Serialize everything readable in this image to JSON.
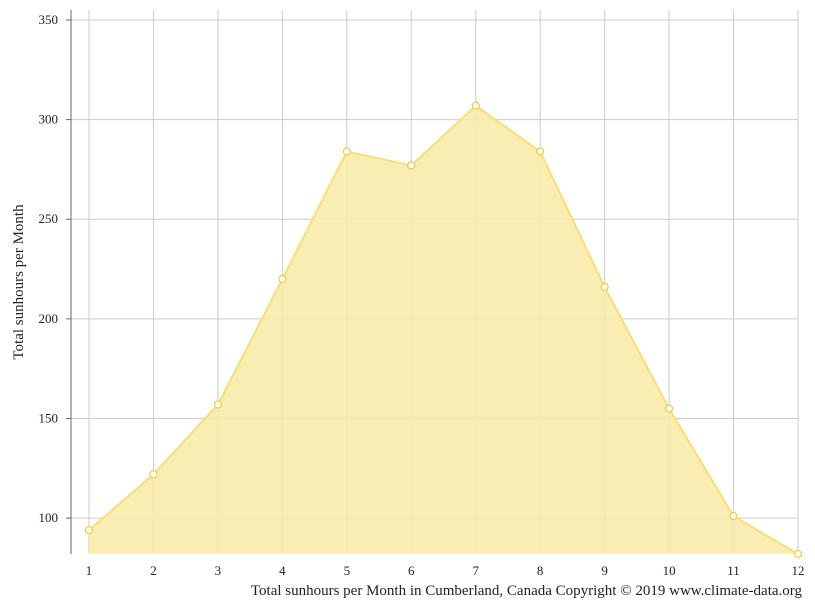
{
  "chart_data": {
    "type": "area",
    "x": [
      1,
      2,
      3,
      4,
      5,
      6,
      7,
      8,
      9,
      10,
      11,
      12
    ],
    "series": [
      {
        "values": [
          94,
          122,
          157,
          220,
          284,
          277,
          307,
          284,
          216,
          155,
          101,
          82
        ]
      }
    ],
    "ylabel": "Total sunhours per Month",
    "xlabel": "",
    "yticks": [
      100,
      150,
      200,
      250,
      300,
      350
    ],
    "xticks": [
      "1",
      "2",
      "3",
      "4",
      "5",
      "6",
      "7",
      "8",
      "9",
      "10",
      "11",
      "12"
    ],
    "ylim": [
      82,
      355
    ],
    "grid": true,
    "colors": {
      "fill": "#f9eba8",
      "line": "#f5df7c",
      "point_fill": "#ffffff",
      "grid": "#cccccc",
      "axis": "#666666"
    }
  },
  "caption": "Total sunhours per Month in Cumberland, Canada Copyright © 2019 www.climate-data.org"
}
